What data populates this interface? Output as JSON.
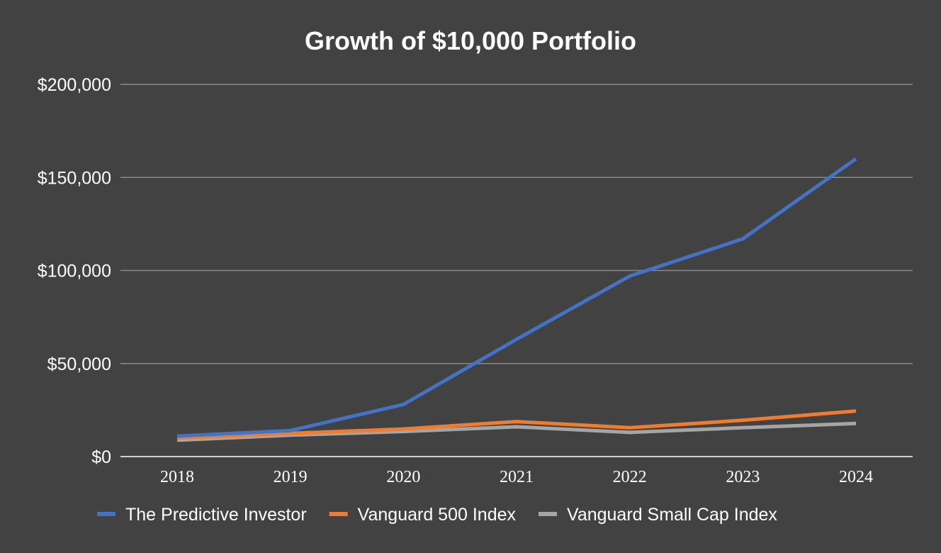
{
  "chart_data": {
    "type": "line",
    "title": "Growth of $10,000 Portfolio",
    "xlabel": "",
    "ylabel": "",
    "categories": [
      "2018",
      "2019",
      "2020",
      "2021",
      "2022",
      "2023",
      "2024"
    ],
    "ylim": [
      0,
      200000
    ],
    "yticks": [
      0,
      50000,
      100000,
      150000,
      200000
    ],
    "ytick_labels": [
      "$0",
      "$50,000",
      "$100,000",
      "$150,000",
      "$200,000"
    ],
    "grid": true,
    "legend_position": "bottom",
    "series": [
      {
        "name": "The Predictive Investor",
        "color": "#4472C4",
        "values": [
          11000,
          14000,
          28000,
          63000,
          97000,
          117000,
          160000
        ]
      },
      {
        "name": "Vanguard 500 Index",
        "color": "#ED7D31",
        "values": [
          10000,
          12500,
          14800,
          18800,
          15500,
          19500,
          24500
        ]
      },
      {
        "name": "Vanguard Small Cap Index",
        "color": "#A5A5A5",
        "values": [
          8800,
          11500,
          13500,
          16000,
          13000,
          15500,
          17800
        ]
      }
    ]
  }
}
